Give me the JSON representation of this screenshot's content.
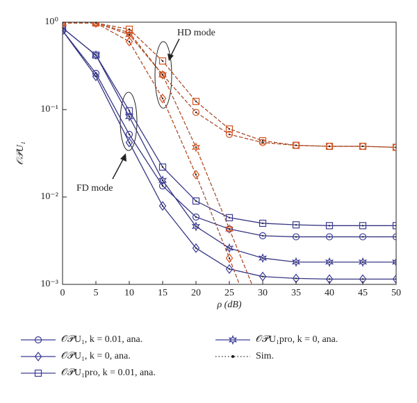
{
  "chart_data": {
    "type": "line",
    "log_y": true,
    "x_label": "ρ (dB)",
    "y_label": "𝒪𝒫U₁",
    "x": [
      0,
      5,
      10,
      15,
      20,
      25,
      30,
      35,
      40,
      45,
      50
    ],
    "xlim": [
      0,
      50
    ],
    "xticks": [
      0,
      5,
      10,
      15,
      20,
      25,
      30,
      35,
      40,
      45,
      50
    ],
    "ylim": [
      0.001,
      1
    ],
    "yticks": [
      {
        "value": 0.001,
        "label": "10⁻³"
      },
      {
        "value": 0.01,
        "label": "10⁻²"
      },
      {
        "value": 0.1,
        "label": "10⁻¹"
      },
      {
        "value": 1,
        "label": "10⁰"
      }
    ],
    "annotations": [
      {
        "text": "HD mode"
      },
      {
        "text": "FD mode"
      }
    ],
    "legend": [
      {
        "name": "𝒪𝒫U₁, k = 0.01, ana.",
        "marker": "circle",
        "color": "#3a3a96"
      },
      {
        "name": "𝒪𝒫U₁, k = 0, ana.",
        "marker": "diamond",
        "color": "#3a3a96"
      },
      {
        "name": "𝒪𝒫U₁pro, k = 0.01, ana.",
        "marker": "square",
        "color": "#3a3a96"
      },
      {
        "name": "𝒪𝒫U₁pro, k = 0, ana.",
        "marker": "star",
        "color": "#3a3a96"
      },
      {
        "name": "Sim.",
        "marker": "dot",
        "color": "#222222"
      }
    ],
    "series": [
      {
        "marker": "circle",
        "color": "#3a3a96",
        "dashed": false,
        "values": [
          0.8,
          0.26,
          0.052,
          0.0134,
          0.0059,
          0.0043,
          0.0036,
          0.0035,
          0.0035,
          0.0035,
          0.0035
        ]
      },
      {
        "marker": "diamond",
        "color": "#3a3a96",
        "dashed": false,
        "values": [
          0.8,
          0.24,
          0.042,
          0.0079,
          0.0026,
          0.0015,
          0.00123,
          0.00117,
          0.00115,
          0.00115,
          0.00115
        ]
      },
      {
        "marker": "square",
        "color": "#3a3a96",
        "dashed": false,
        "values": [
          0.86,
          0.42,
          0.097,
          0.022,
          0.009,
          0.0058,
          0.005,
          0.0048,
          0.0047,
          0.0047,
          0.0047
        ]
      },
      {
        "marker": "star",
        "color": "#3a3a96",
        "dashed": false,
        "values": [
          0.86,
          0.42,
          0.083,
          0.0155,
          0.0046,
          0.0026,
          0.002,
          0.0018,
          0.0018,
          0.0018,
          0.0018
        ]
      },
      {
        "marker": "circle",
        "color": "#d2501e",
        "dashed": true,
        "values": [
          0.98,
          0.98,
          0.76,
          0.25,
          0.093,
          0.052,
          0.042,
          0.039,
          0.038,
          0.038,
          0.037
        ]
      },
      {
        "marker": "diamond",
        "color": "#d2501e",
        "dashed": true,
        "values": [
          0.98,
          0.98,
          0.6,
          0.134,
          0.018,
          0.002,
          0.0002,
          null,
          null,
          null,
          null
        ]
      },
      {
        "marker": "square",
        "color": "#d2501e",
        "dashed": true,
        "values": [
          0.98,
          0.98,
          0.83,
          0.36,
          0.124,
          0.06,
          0.044,
          0.039,
          0.038,
          0.038,
          0.037
        ]
      },
      {
        "marker": "star",
        "color": "#d2501e",
        "dashed": true,
        "values": [
          0.98,
          0.98,
          0.72,
          0.25,
          0.037,
          0.0043,
          0.0005,
          null,
          null,
          null,
          null
        ]
      }
    ]
  }
}
